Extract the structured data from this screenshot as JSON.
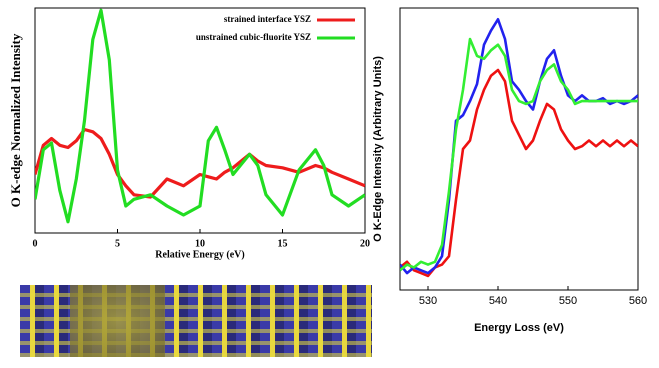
{
  "chart_data": [
    {
      "type": "line",
      "xlabel": "Relative Energy (eV)",
      "ylabel": "O K-edge Normalized Intensity",
      "x": [
        0,
        0.5,
        1,
        1.5,
        2,
        2.5,
        3,
        3.5,
        4,
        4.5,
        5,
        5.5,
        6,
        7,
        8,
        9,
        10,
        10.5,
        11,
        11.5,
        12,
        13,
        13.5,
        14,
        15,
        16,
        17,
        17.5,
        18,
        19,
        20
      ],
      "series": [
        {
          "name": "strained interface YSZ",
          "color": "#ee1c1c",
          "values": [
            0.26,
            0.39,
            0.42,
            0.39,
            0.38,
            0.41,
            0.46,
            0.45,
            0.42,
            0.35,
            0.26,
            0.21,
            0.17,
            0.16,
            0.24,
            0.21,
            0.26,
            0.25,
            0.24,
            0.27,
            0.29,
            0.35,
            0.32,
            0.3,
            0.29,
            0.27,
            0.3,
            0.29,
            0.27,
            0.24,
            0.21
          ]
        },
        {
          "name": "unstrained cubic-fluorite YSZ",
          "color": "#22dd22",
          "values": [
            0.15,
            0.37,
            0.4,
            0.19,
            0.05,
            0.24,
            0.5,
            0.86,
            0.99,
            0.77,
            0.28,
            0.12,
            0.15,
            0.17,
            0.12,
            0.08,
            0.12,
            0.41,
            0.47,
            0.37,
            0.26,
            0.35,
            0.3,
            0.17,
            0.08,
            0.28,
            0.37,
            0.3,
            0.17,
            0.12,
            0.17
          ]
        }
      ],
      "xlim": [
        0,
        20
      ],
      "xticks": [
        0,
        5,
        10,
        15,
        20
      ],
      "ylim": [
        0,
        1
      ],
      "legend": "top-right"
    },
    {
      "type": "line",
      "xlabel": "Energy Loss (eV)",
      "ylabel": "O K-Edge Intensity (Arbitrary Units)",
      "x": [
        526,
        527,
        528,
        529,
        530,
        531,
        532,
        533,
        534,
        535,
        536,
        537,
        538,
        539,
        540,
        541,
        542,
        543,
        544,
        545,
        546,
        547,
        548,
        549,
        550,
        551,
        552,
        553,
        554,
        555,
        556,
        557,
        558,
        559,
        560
      ],
      "series": [
        {
          "color": "#ee1111",
          "values": [
            0.08,
            0.1,
            0.07,
            0.06,
            0.05,
            0.08,
            0.09,
            0.12,
            0.32,
            0.5,
            0.53,
            0.64,
            0.71,
            0.76,
            0.78,
            0.74,
            0.6,
            0.55,
            0.5,
            0.53,
            0.6,
            0.66,
            0.64,
            0.57,
            0.53,
            0.5,
            0.51,
            0.53,
            0.51,
            0.53,
            0.51,
            0.53,
            0.51,
            0.53,
            0.51
          ]
        },
        {
          "color": "#2222ee",
          "values": [
            0.09,
            0.06,
            0.08,
            0.07,
            0.06,
            0.08,
            0.12,
            0.32,
            0.6,
            0.62,
            0.67,
            0.73,
            0.87,
            0.92,
            0.96,
            0.89,
            0.74,
            0.71,
            0.67,
            0.64,
            0.74,
            0.82,
            0.85,
            0.76,
            0.69,
            0.67,
            0.69,
            0.67,
            0.67,
            0.68,
            0.66,
            0.67,
            0.66,
            0.67,
            0.69
          ]
        },
        {
          "color": "#33ee33",
          "values": [
            0.07,
            0.09,
            0.08,
            0.1,
            0.09,
            0.1,
            0.16,
            0.35,
            0.57,
            0.71,
            0.89,
            0.83,
            0.82,
            0.85,
            0.87,
            0.83,
            0.71,
            0.67,
            0.66,
            0.67,
            0.74,
            0.78,
            0.8,
            0.74,
            0.71,
            0.66,
            0.67,
            0.67,
            0.67,
            0.67,
            0.67,
            0.67,
            0.67,
            0.67,
            0.67
          ]
        }
      ],
      "xlim": [
        526,
        560
      ],
      "xticks": [
        530,
        540,
        550,
        560
      ],
      "ylim": [
        0,
        1
      ]
    }
  ]
}
